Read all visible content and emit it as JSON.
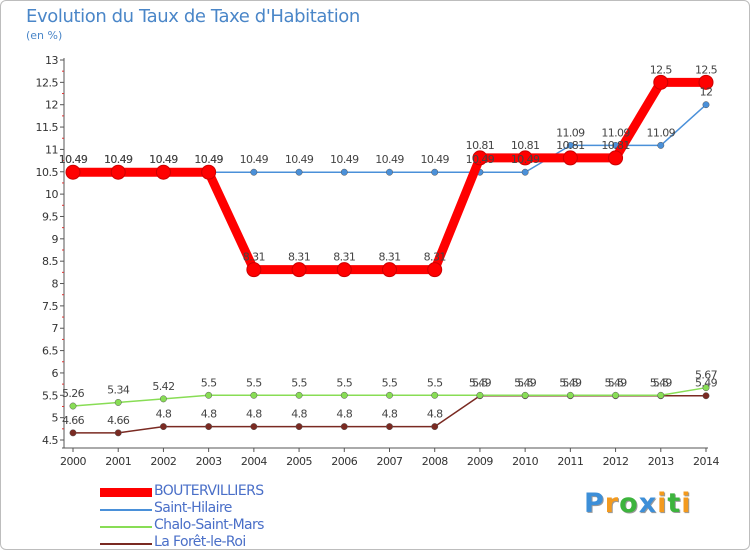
{
  "chart_data": {
    "type": "line",
    "title": "Evolution du Taux de Taxe d'Habitation",
    "ylabel": "(en %)",
    "xlabel": "",
    "ylim": [
      4.5,
      13
    ],
    "yticks": [
      "4.5",
      "5",
      "5.5",
      "6",
      "6.5",
      "7",
      "7.5",
      "8",
      "8.5",
      "9",
      "9.5",
      "10",
      "10.5",
      "11",
      "11.5",
      "12",
      "12.5",
      "13"
    ],
    "categories": [
      "2000",
      "2001",
      "2002",
      "2003",
      "2004",
      "2005",
      "2006",
      "2007",
      "2008",
      "2009",
      "2010",
      "2011",
      "2012",
      "2013",
      "2014"
    ],
    "grid": false,
    "series": [
      {
        "name": "BOUTERVILLIERS",
        "color": "#ff0000",
        "values": [
          10.49,
          10.49,
          10.49,
          10.49,
          8.31,
          8.31,
          8.31,
          8.31,
          8.31,
          10.81,
          10.81,
          10.81,
          10.81,
          12.5,
          12.5
        ],
        "labels": [
          "10.49",
          "10.49",
          "10.49",
          "10.49",
          "8.31",
          "8.31",
          "8.31",
          "8.31",
          "8.31",
          "10.81",
          "10.81",
          "10.81",
          "10.81",
          "12.5",
          "12.5"
        ]
      },
      {
        "name": "Saint-Hilaire",
        "color": "#4a90d9",
        "values": [
          10.49,
          10.49,
          10.49,
          10.49,
          10.49,
          10.49,
          10.49,
          10.49,
          10.49,
          10.49,
          10.49,
          11.09,
          11.09,
          11.09,
          12
        ],
        "labels": [
          "10.49",
          "10.49",
          "10.49",
          "10.49",
          "10.49",
          "10.49",
          "10.49",
          "10.49",
          "10.49",
          "10.49",
          "10.49",
          "11.09",
          "11.09",
          "11.09",
          "12"
        ]
      },
      {
        "name": "Chalo-Saint-Mars",
        "color": "#88dd55",
        "values": [
          5.26,
          5.34,
          5.42,
          5.5,
          5.5,
          5.5,
          5.5,
          5.5,
          5.5,
          5.5,
          5.5,
          5.5,
          5.5,
          5.5,
          5.67
        ],
        "labels": [
          "5.26",
          "5.34",
          "5.42",
          "5.5",
          "5.5",
          "5.5",
          "5.5",
          "5.5",
          "5.5",
          "5.5",
          "5.5",
          "5.5",
          "5.5",
          "5.5",
          "5.67"
        ]
      },
      {
        "name": "La Forêt-le-Roi",
        "color": "#7a2a22",
        "values": [
          4.66,
          4.66,
          4.8,
          4.8,
          4.8,
          4.8,
          4.8,
          4.8,
          4.8,
          5.49,
          5.49,
          5.49,
          5.49,
          5.49,
          5.49
        ],
        "labels": [
          "4.66",
          "4.66",
          "4.8",
          "4.8",
          "4.8",
          "4.8",
          "4.8",
          "4.8",
          "4.8",
          "5.49",
          "5.49",
          "5.49",
          "5.49",
          "5.49",
          "5.49"
        ]
      }
    ]
  },
  "brand": {
    "letters": [
      "P",
      "r",
      "o",
      "x",
      "i",
      "t",
      "i"
    ],
    "colors": [
      "#3d8fd8",
      "#f39a1e",
      "#3db43d",
      "#3d8fd8",
      "#f39a1e",
      "#3db43d",
      "#f39a1e"
    ]
  }
}
